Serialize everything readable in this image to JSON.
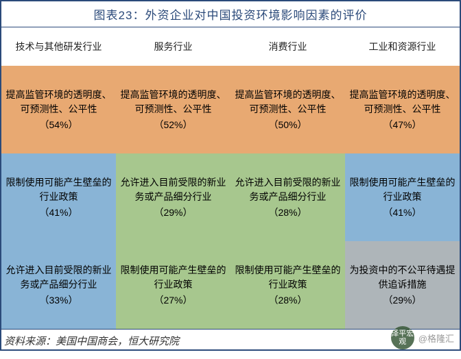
{
  "title": "图表23：外资企业对中国投资环境影响因素的评价",
  "columns": [
    "技术与其他研发行业",
    "服务行业",
    "消费行业",
    "工业和资源行业"
  ],
  "colors": {
    "orange": "#e8a972",
    "blue": "#89b4d6",
    "green": "#a7c78e",
    "gray": "#aeb5b9",
    "white": "#ffffff",
    "border": "#2b4a7a"
  },
  "rows": [
    [
      {
        "text": "提高监管环境的透明度、可预测性、公平性",
        "pct": "（54%）",
        "color": "orange"
      },
      {
        "text": "提高监管环境的透明度、可预测性、公平性",
        "pct": "（52%）",
        "color": "orange"
      },
      {
        "text": "提高监管环境的透明度、可预测性、公平性",
        "pct": "（50%）",
        "color": "orange"
      },
      {
        "text": "提高监管环境的透明度、可预测性、公平性",
        "pct": "（47%）",
        "color": "orange"
      }
    ],
    [
      {
        "text": "限制使用可能产生壁垒的行业政策",
        "pct": "（41%）",
        "color": "blue"
      },
      {
        "text": "允许进入目前受限的新业务或产品细分行业",
        "pct": "（29%）",
        "color": "green"
      },
      {
        "text": "允许进入目前受限的新业务或产品细分行业",
        "pct": "（28%）",
        "color": "green"
      },
      {
        "text": "限制使用可能产生壁垒的行业政策",
        "pct": "（41%）",
        "color": "blue"
      }
    ],
    [
      {
        "text": "允许进入目前受限的新业务或产品细分行业",
        "pct": "（33%）",
        "color": "blue"
      },
      {
        "text": "限制使用可能产生壁垒的行业政策",
        "pct": "（27%）",
        "color": "green"
      },
      {
        "text": "限制使用可能产生壁垒的行业政策",
        "pct": "（28%）",
        "color": "green"
      },
      {
        "text": "为投资中的不公平待遇提供追诉措施",
        "pct": "（29%）",
        "color": "gray"
      }
    ]
  ],
  "source": "资料来源：美国中国商会，恒大研究院",
  "watermark": {
    "circle": "泽平宏观",
    "handle": "@格隆汇"
  }
}
